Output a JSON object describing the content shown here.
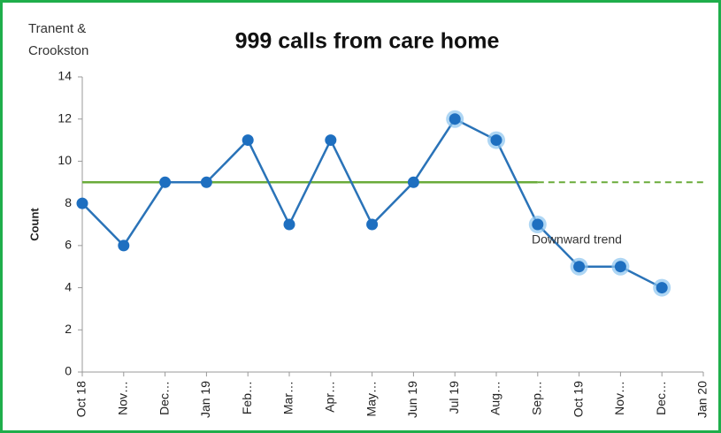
{
  "chart_data": {
    "type": "line",
    "title": "999 calls from care home",
    "subtitle": "Tranent & Crookston",
    "y_label": "Count",
    "annotation": "Downward trend",
    "categories": [
      "Oct 18",
      "Nov…",
      "Dec…",
      "Jan 19",
      "Feb…",
      "Mar…",
      "Apr…",
      "May…",
      "Jun 19",
      "Jul 19",
      "Aug…",
      "Sep…",
      "Oct 19",
      "Nov…",
      "Dec…",
      "Jan 20"
    ],
    "series": [
      {
        "color": "#2a73b8",
        "values": [
          8,
          6,
          9,
          9,
          11,
          7,
          11,
          7,
          9,
          12,
          11,
          7,
          5,
          5,
          4,
          null
        ]
      }
    ],
    "median": 9,
    "median_color": "#6aab3a",
    "median_dashed_from_index": 11,
    "highlight_from_index": 9,
    "ylim": [
      0,
      14
    ],
    "yticks": [
      0,
      2,
      4,
      6,
      8,
      10,
      12,
      14
    ],
    "grid": false
  }
}
